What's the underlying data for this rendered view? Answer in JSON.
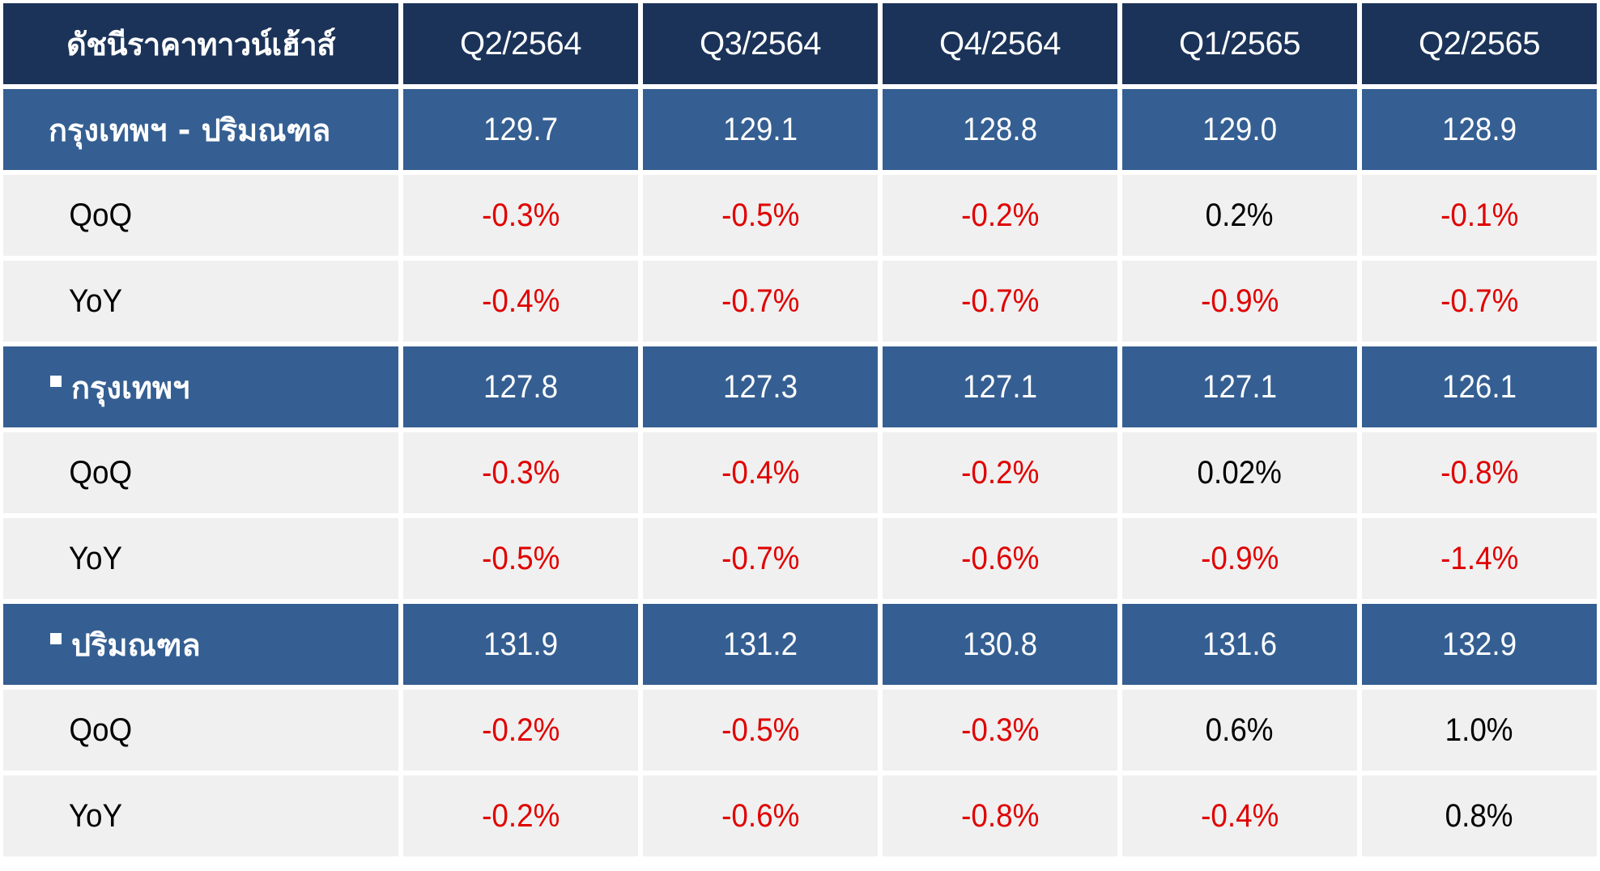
{
  "table": {
    "header": {
      "label": "ดัชนีราคาทาวน์เฮ้าส์",
      "periods": [
        "Q2/2564",
        "Q3/2564",
        "Q4/2564",
        "Q1/2565",
        "Q2/2565"
      ]
    },
    "groups": [
      {
        "label": "กรุงเทพฯ - ปริมณฑล",
        "bullet": false,
        "index": [
          "129.7",
          "129.1",
          "128.8",
          "129.0",
          "128.9"
        ],
        "qoq_label": "QoQ",
        "qoq": [
          "-0.3%",
          "-0.5%",
          "-0.2%",
          "0.2%",
          "-0.1%"
        ],
        "yoy_label": "YoY",
        "yoy": [
          "-0.4%",
          "-0.7%",
          "-0.7%",
          "-0.9%",
          "-0.7%"
        ]
      },
      {
        "label": "กรุงเทพฯ",
        "bullet": true,
        "index": [
          "127.8",
          "127.3",
          "127.1",
          "127.1",
          "126.1"
        ],
        "qoq_label": "QoQ",
        "qoq": [
          "-0.3%",
          "-0.4%",
          "-0.2%",
          "0.02%",
          "-0.8%"
        ],
        "yoy_label": "YoY",
        "yoy": [
          "-0.5%",
          "-0.7%",
          "-0.6%",
          "-0.9%",
          "-1.4%"
        ]
      },
      {
        "label": "ปริมณฑล",
        "bullet": true,
        "index": [
          "131.9",
          "131.2",
          "130.8",
          "131.6",
          "132.9"
        ],
        "qoq_label": "QoQ",
        "qoq": [
          "-0.2%",
          "-0.5%",
          "-0.3%",
          "0.6%",
          "1.0%"
        ],
        "yoy_label": "YoY",
        "yoy": [
          "-0.2%",
          "-0.6%",
          "-0.8%",
          "-0.4%",
          "0.8%"
        ]
      }
    ],
    "colors": {
      "header_bg": "#1b3358",
      "group_bg": "#355f92",
      "metric_bg": "#f0f0f0",
      "negative_text": "#e00000",
      "positive_text": "#000000"
    }
  },
  "chart_data": {
    "type": "table",
    "columns": [
      "ดัชนีราคาทาวน์เฮ้าส์",
      "Q2/2564",
      "Q3/2564",
      "Q4/2564",
      "Q1/2565",
      "Q2/2565"
    ],
    "rows": [
      [
        "กรุงเทพฯ - ปริมณฑล",
        "129.7",
        "129.1",
        "128.8",
        "129.0",
        "128.9"
      ],
      [
        "QoQ",
        "-0.3%",
        "-0.5%",
        "-0.2%",
        "0.2%",
        "-0.1%"
      ],
      [
        "YoY",
        "-0.4%",
        "-0.7%",
        "-0.7%",
        "-0.9%",
        "-0.7%"
      ],
      [
        "กรุงเทพฯ",
        "127.8",
        "127.3",
        "127.1",
        "127.1",
        "126.1"
      ],
      [
        "QoQ",
        "-0.3%",
        "-0.4%",
        "-0.2%",
        "0.02%",
        "-0.8%"
      ],
      [
        "YoY",
        "-0.5%",
        "-0.7%",
        "-0.6%",
        "-0.9%",
        "-1.4%"
      ],
      [
        "ปริมณฑล",
        "131.9",
        "131.2",
        "130.8",
        "131.6",
        "132.9"
      ],
      [
        "QoQ",
        "-0.2%",
        "-0.5%",
        "-0.3%",
        "0.6%",
        "1.0%"
      ],
      [
        "YoY",
        "-0.2%",
        "-0.6%",
        "-0.8%",
        "-0.4%",
        "0.8%"
      ]
    ]
  }
}
